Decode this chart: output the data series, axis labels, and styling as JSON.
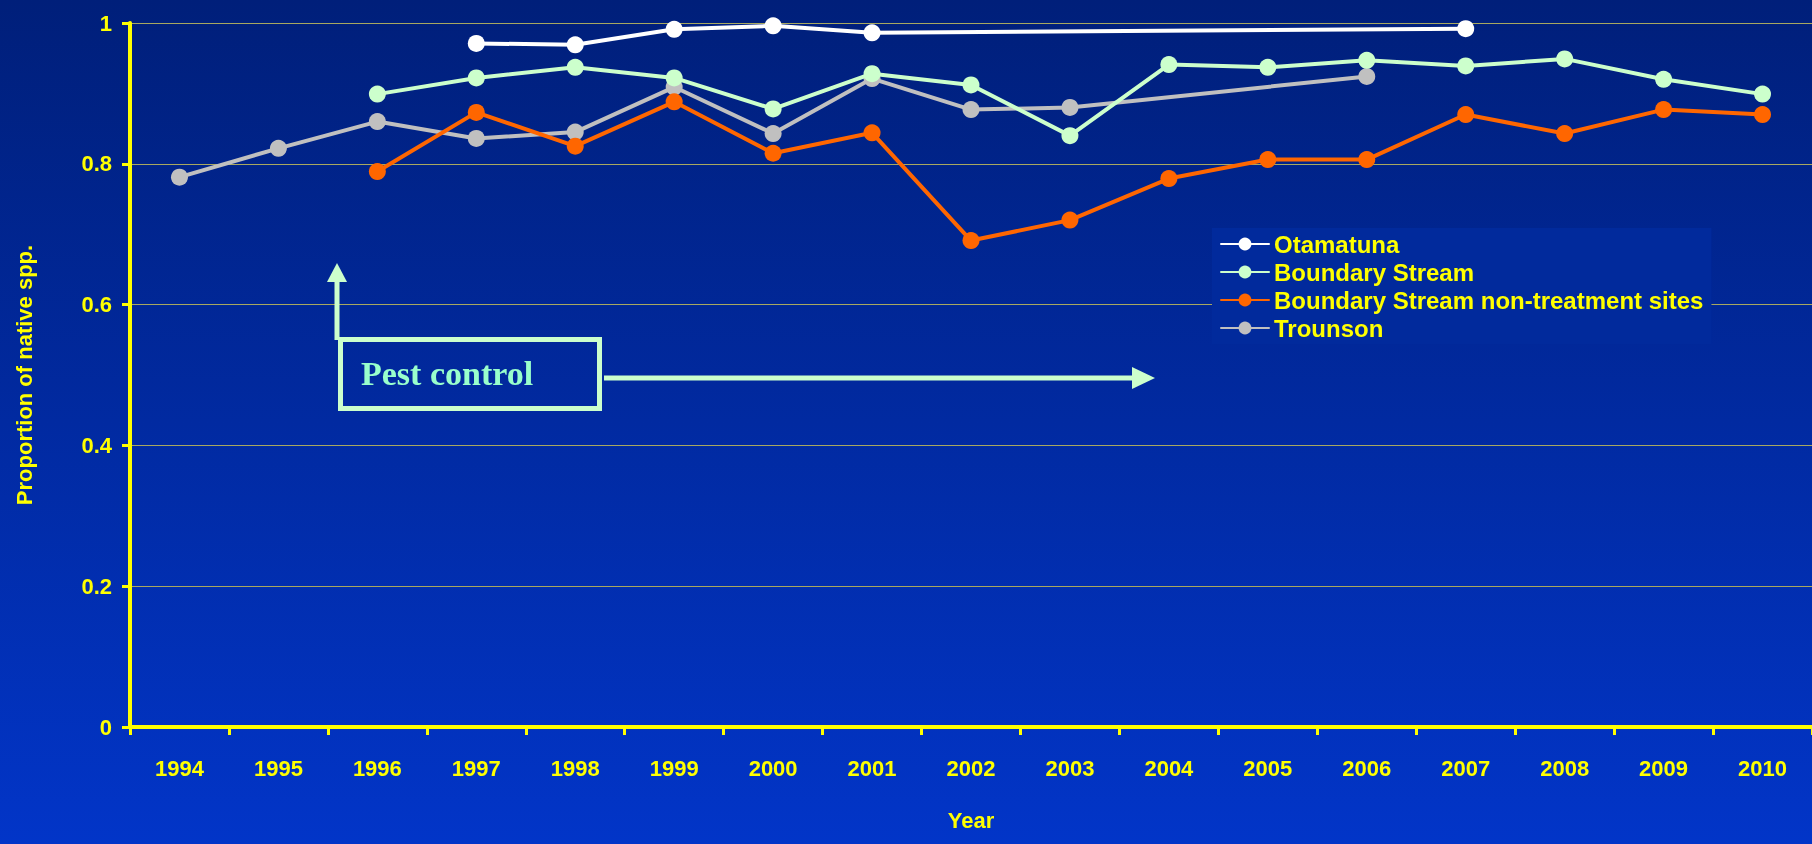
{
  "chart_data": {
    "type": "line",
    "xlabel": "Year",
    "ylabel": "Proportion of native spp.",
    "categories": [
      "1994",
      "1995",
      "1996",
      "1997",
      "1998",
      "1999",
      "2000",
      "2001",
      "2002",
      "2003",
      "2004",
      "2005",
      "2006",
      "2007",
      "2008",
      "2009",
      "2010"
    ],
    "series": [
      {
        "name": "Otamatuna",
        "color": "#ffffff",
        "values": [
          null,
          null,
          null,
          0.971,
          0.969,
          0.991,
          0.996,
          0.986,
          null,
          null,
          null,
          null,
          null,
          0.992,
          null,
          null,
          null
        ]
      },
      {
        "name": "Boundary Stream",
        "color": "#ccffcc",
        "values": [
          null,
          null,
          0.899,
          0.922,
          0.937,
          0.922,
          0.878,
          0.928,
          0.912,
          0.84,
          0.941,
          0.937,
          0.947,
          0.939,
          0.949,
          0.92,
          0.899
        ]
      },
      {
        "name": "Boundary Stream non-treatment sites",
        "color": "#ff6600",
        "values": [
          null,
          null,
          0.789,
          0.873,
          0.825,
          0.888,
          0.815,
          0.844,
          0.691,
          0.72,
          0.779,
          0.806,
          0.806,
          0.87,
          0.843,
          0.877,
          0.87
        ]
      },
      {
        "name": "Trounson",
        "color": "#c0c0c0",
        "values": [
          0.781,
          0.822,
          0.86,
          0.836,
          0.845,
          0.909,
          0.843,
          0.921,
          0.877,
          0.88,
          null,
          null,
          0.924,
          null,
          null,
          null,
          null
        ]
      }
    ],
    "ylim": [
      0,
      1
    ],
    "yticks": [
      0,
      0.2,
      0.4,
      0.6,
      0.8,
      1
    ],
    "grid": "y",
    "legend": "right",
    "marker": "circle",
    "line_style": "solid",
    "annotations": [
      "Pest control"
    ]
  }
}
